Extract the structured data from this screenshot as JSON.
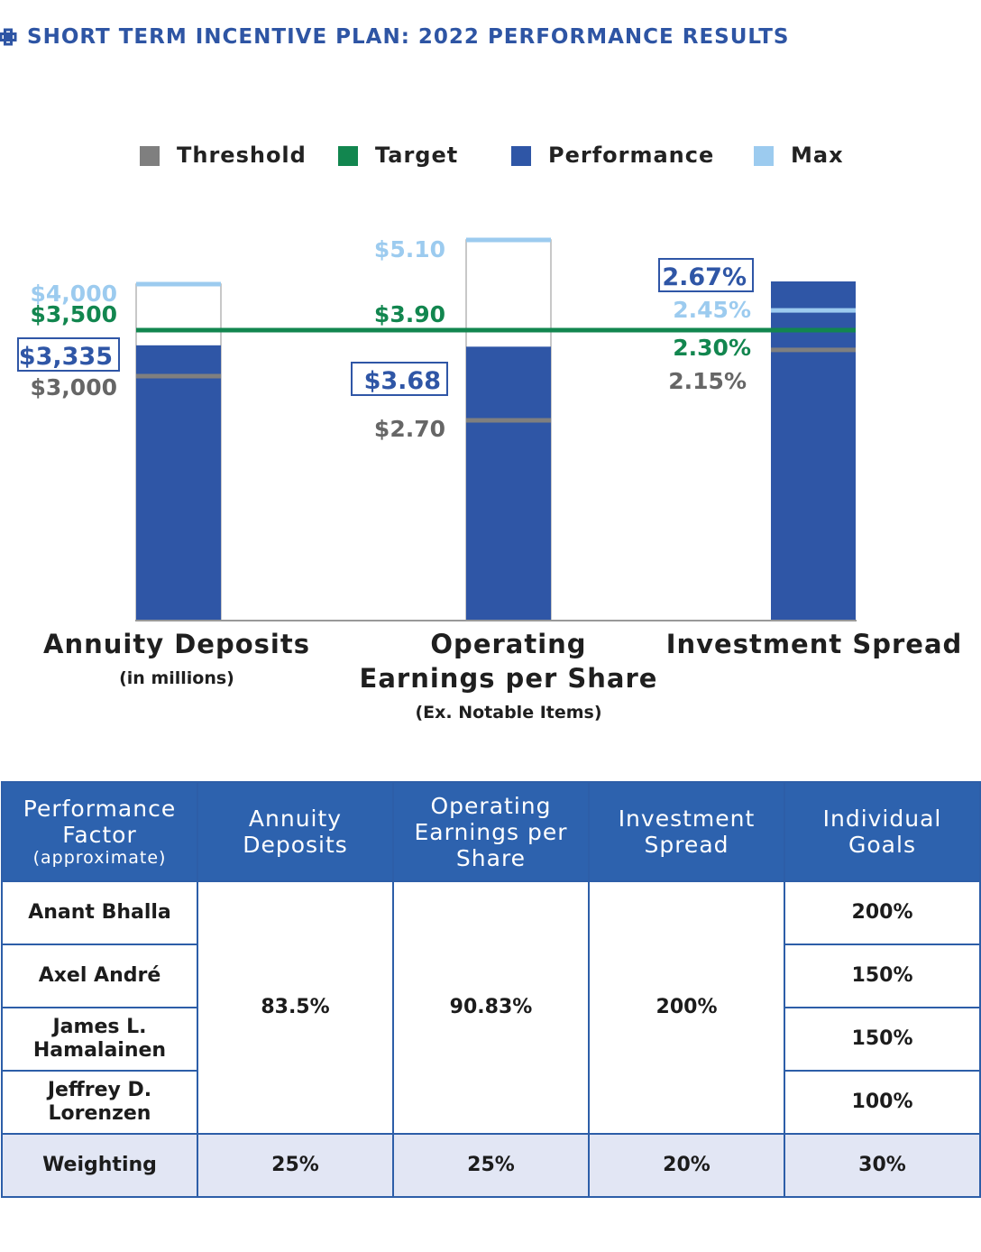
{
  "header": {
    "title": "SHORT TERM INCENTIVE PLAN: 2022 PERFORMANCE RESULTS"
  },
  "colors": {
    "threshold": "#7f7f7f",
    "target": "#12864f",
    "performance": "#2f56a6",
    "max": "#9ccbef",
    "title": "#2e55a4"
  },
  "chart_data": {
    "type": "bar",
    "legend": [
      "Threshold",
      "Target",
      "Performance",
      "Max"
    ],
    "legend_position": "top",
    "categories": [
      {
        "name": "Annuity Deposits",
        "name_lines": [
          "Annuity Deposits"
        ],
        "subtitle": "(in millions)",
        "threshold": 3000,
        "target": 3500,
        "performance": 3335,
        "max": 4000,
        "threshold_label": "$3,000",
        "target_label": "$3,500",
        "performance_label": "$3,335",
        "max_label": "$4,000"
      },
      {
        "name": "Operating Earnings per Share",
        "name_lines": [
          "Operating",
          "Earnings per Share"
        ],
        "subtitle": "(Ex. Notable Items)",
        "threshold": 2.7,
        "target": 3.9,
        "performance": 3.68,
        "max": 5.1,
        "threshold_label": "$2.70",
        "target_label": "$3.90",
        "performance_label": "$3.68",
        "max_label": "$5.10"
      },
      {
        "name": "Investment Spread",
        "name_lines": [
          "Investment Spread"
        ],
        "subtitle": "",
        "threshold": 2.15,
        "target": 2.3,
        "performance": 2.67,
        "max": 2.45,
        "threshold_label": "2.15%",
        "target_label": "2.30%",
        "performance_label": "2.67%",
        "max_label": "2.45%"
      }
    ]
  },
  "table": {
    "headers": [
      {
        "main": "Performance Factor",
        "sub": "(approximate)"
      },
      {
        "main": "Annuity Deposits"
      },
      {
        "main": "Operating Earnings per Share"
      },
      {
        "main": "Investment Spread"
      },
      {
        "main": "Individual Goals"
      }
    ],
    "executives": [
      "Anant Bhalla",
      "Axel André",
      "James L. Hamalainen",
      "Jeffrey D. Lorenzen"
    ],
    "factors": {
      "annuity_deposits": "83.5%",
      "operating_eps": "90.83%",
      "investment_spread": "200%"
    },
    "individual_goals": [
      "200%",
      "150%",
      "150%",
      "100%"
    ],
    "weighting": {
      "label": "Weighting",
      "values": [
        "25%",
        "25%",
        "20%",
        "30%"
      ]
    }
  }
}
